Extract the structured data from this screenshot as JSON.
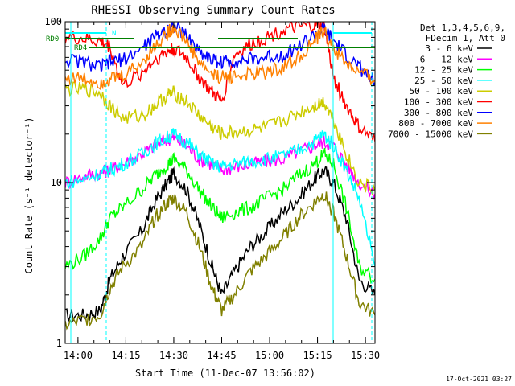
{
  "chart_data": {
    "type": "line",
    "title": "RHESSI Observing Summary Count Rates",
    "xlabel": "Start Time (11-Dec-07 13:56:02)",
    "ylabel": "Count Rate (s⁻¹ detector⁻¹)",
    "yscale": "log",
    "ylim": [
      1,
      100
    ],
    "xlim_minutes": [
      0,
      97
    ],
    "x_start": "13:56:02",
    "x_ticks": [
      {
        "label": "14:00",
        "minute": 4
      },
      {
        "label": "14:15",
        "minute": 19
      },
      {
        "label": "14:30",
        "minute": 34
      },
      {
        "label": "14:45",
        "minute": 49
      },
      {
        "label": "15:00",
        "minute": 64
      },
      {
        "label": "15:15",
        "minute": 79
      },
      {
        "label": "15:30",
        "minute": 94
      }
    ],
    "y_ticks": [
      {
        "label": "1",
        "value": 1
      },
      {
        "label": "10",
        "value": 10
      },
      {
        "label": "100",
        "value": 100
      }
    ],
    "legend_header": [
      "Det 1,3,4,5,6,9,",
      "FDecim 1, Att 0"
    ],
    "legend_position": "top-right",
    "annotations": [
      "RD0",
      "RD4",
      "N"
    ],
    "footer_date": "17-Oct-2021 03:27",
    "series": [
      {
        "name": "3 - 6 keV",
        "color": "#000000",
        "points": [
          [
            0,
            1.5
          ],
          [
            6,
            1.5
          ],
          [
            11,
            1.6
          ],
          [
            14,
            2.5
          ],
          [
            18,
            3.5
          ],
          [
            24,
            5
          ],
          [
            28,
            7.5
          ],
          [
            32,
            10
          ],
          [
            34,
            11.5
          ],
          [
            38,
            9
          ],
          [
            42,
            5.5
          ],
          [
            46,
            3
          ],
          [
            49,
            2
          ],
          [
            53,
            2.8
          ],
          [
            58,
            4
          ],
          [
            63,
            5
          ],
          [
            68,
            6.5
          ],
          [
            73,
            8
          ],
          [
            78,
            10.5
          ],
          [
            81,
            12
          ],
          [
            84,
            10
          ],
          [
            88,
            6
          ],
          [
            92,
            2.5
          ],
          [
            97,
            2
          ]
        ]
      },
      {
        "name": "6 - 12 keV",
        "color": "#ff00ff",
        "points": [
          [
            0,
            10
          ],
          [
            6,
            11
          ],
          [
            11,
            11.5
          ],
          [
            14,
            12
          ],
          [
            18,
            13
          ],
          [
            24,
            15
          ],
          [
            28,
            17
          ],
          [
            32,
            18.5
          ],
          [
            34,
            19
          ],
          [
            38,
            17
          ],
          [
            42,
            14
          ],
          [
            46,
            13
          ],
          [
            49,
            12
          ],
          [
            53,
            12.5
          ],
          [
            58,
            13
          ],
          [
            63,
            13.5
          ],
          [
            68,
            14
          ],
          [
            73,
            15.5
          ],
          [
            78,
            17
          ],
          [
            81,
            18
          ],
          [
            84,
            17
          ],
          [
            88,
            13
          ],
          [
            92,
            10
          ],
          [
            97,
            8.5
          ]
        ]
      },
      {
        "name": "12 - 25 keV",
        "color": "#00ff00",
        "points": [
          [
            0,
            3
          ],
          [
            6,
            3.5
          ],
          [
            11,
            4.5
          ],
          [
            14,
            6
          ],
          [
            18,
            7
          ],
          [
            24,
            9
          ],
          [
            28,
            11
          ],
          [
            32,
            13
          ],
          [
            34,
            14
          ],
          [
            38,
            12
          ],
          [
            42,
            9
          ],
          [
            46,
            7
          ],
          [
            49,
            6
          ],
          [
            53,
            6.5
          ],
          [
            58,
            7
          ],
          [
            63,
            8
          ],
          [
            68,
            9
          ],
          [
            73,
            11
          ],
          [
            78,
            13
          ],
          [
            81,
            15
          ],
          [
            84,
            13
          ],
          [
            88,
            7
          ],
          [
            92,
            3
          ],
          [
            97,
            2.5
          ]
        ]
      },
      {
        "name": "25 - 50 keV",
        "color": "#00ffff",
        "points": [
          [
            0,
            10
          ],
          [
            6,
            10.5
          ],
          [
            11,
            11.5
          ],
          [
            14,
            12
          ],
          [
            18,
            13
          ],
          [
            24,
            15
          ],
          [
            28,
            17.5
          ],
          [
            32,
            19
          ],
          [
            34,
            20
          ],
          [
            38,
            18
          ],
          [
            42,
            15
          ],
          [
            46,
            13
          ],
          [
            49,
            12.5
          ],
          [
            53,
            13
          ],
          [
            58,
            13.5
          ],
          [
            63,
            14
          ],
          [
            68,
            14.5
          ],
          [
            73,
            16
          ],
          [
            78,
            18
          ],
          [
            81,
            20
          ],
          [
            84,
            17
          ],
          [
            88,
            12
          ],
          [
            92,
            8
          ],
          [
            97,
            3
          ]
        ]
      },
      {
        "name": "50 - 100 keV",
        "color": "#cccc00",
        "points": [
          [
            0,
            38
          ],
          [
            6,
            38
          ],
          [
            11,
            36
          ],
          [
            14,
            30
          ],
          [
            18,
            25
          ],
          [
            24,
            26
          ],
          [
            28,
            30
          ],
          [
            32,
            35
          ],
          [
            34,
            36
          ],
          [
            38,
            32
          ],
          [
            42,
            26
          ],
          [
            46,
            22
          ],
          [
            49,
            20
          ],
          [
            53,
            20.5
          ],
          [
            58,
            21
          ],
          [
            63,
            22
          ],
          [
            68,
            24
          ],
          [
            73,
            27
          ],
          [
            78,
            30
          ],
          [
            81,
            32
          ],
          [
            84,
            25
          ],
          [
            88,
            15
          ],
          [
            92,
            10
          ],
          [
            97,
            9
          ]
        ]
      },
      {
        "name": "100 - 300 keV",
        "color": "#ff0000",
        "points": [
          [
            0,
            80
          ],
          [
            6,
            78
          ],
          [
            11,
            75
          ],
          [
            14,
            70
          ],
          [
            18,
            40
          ],
          [
            24,
            48
          ],
          [
            28,
            58
          ],
          [
            32,
            65
          ],
          [
            34,
            68
          ],
          [
            38,
            60
          ],
          [
            42,
            45
          ],
          [
            46,
            36
          ],
          [
            49,
            32
          ],
          [
            53,
            62
          ],
          [
            58,
            72
          ],
          [
            63,
            80
          ],
          [
            68,
            88
          ],
          [
            73,
            92
          ],
          [
            78,
            95
          ],
          [
            81,
            96
          ],
          [
            84,
            45
          ],
          [
            88,
            30
          ],
          [
            92,
            22
          ],
          [
            97,
            18
          ]
        ]
      },
      {
        "name": "300 - 800 keV",
        "color": "#0000ff",
        "points": [
          [
            0,
            58
          ],
          [
            6,
            56
          ],
          [
            11,
            52
          ],
          [
            14,
            56
          ],
          [
            18,
            58
          ],
          [
            24,
            68
          ],
          [
            28,
            80
          ],
          [
            32,
            90
          ],
          [
            34,
            94
          ],
          [
            38,
            82
          ],
          [
            42,
            66
          ],
          [
            46,
            58
          ],
          [
            49,
            56
          ],
          [
            53,
            57
          ],
          [
            58,
            58
          ],
          [
            63,
            60
          ],
          [
            68,
            62
          ],
          [
            73,
            70
          ],
          [
            78,
            82
          ],
          [
            81,
            90
          ],
          [
            84,
            76
          ],
          [
            88,
            62
          ],
          [
            92,
            52
          ],
          [
            97,
            42
          ]
        ]
      },
      {
        "name": "800 - 7000 keV",
        "color": "#ff8000",
        "points": [
          [
            0,
            45
          ],
          [
            6,
            44
          ],
          [
            11,
            42
          ],
          [
            14,
            44
          ],
          [
            18,
            46
          ],
          [
            24,
            56
          ],
          [
            28,
            70
          ],
          [
            32,
            85
          ],
          [
            34,
            92
          ],
          [
            38,
            76
          ],
          [
            42,
            56
          ],
          [
            46,
            47
          ],
          [
            49,
            45
          ],
          [
            53,
            46
          ],
          [
            58,
            47
          ],
          [
            63,
            49
          ],
          [
            68,
            52
          ],
          [
            73,
            60
          ],
          [
            78,
            75
          ],
          [
            81,
            88
          ],
          [
            84,
            68
          ],
          [
            88,
            55
          ],
          [
            92,
            48
          ],
          [
            97,
            43
          ]
        ]
      },
      {
        "name": "7000 - 15000 keV",
        "color": "#808000",
        "points": [
          [
            0,
            1.3
          ],
          [
            6,
            1.4
          ],
          [
            11,
            1.5
          ],
          [
            14,
            2.2
          ],
          [
            18,
            3
          ],
          [
            24,
            4
          ],
          [
            28,
            6
          ],
          [
            32,
            7.5
          ],
          [
            34,
            8
          ],
          [
            38,
            6.5
          ],
          [
            42,
            4
          ],
          [
            46,
            2.2
          ],
          [
            49,
            1.6
          ],
          [
            53,
            2
          ],
          [
            58,
            2.8
          ],
          [
            63,
            3.5
          ],
          [
            68,
            4.5
          ],
          [
            73,
            6
          ],
          [
            78,
            7.5
          ],
          [
            81,
            8.5
          ],
          [
            84,
            6.5
          ],
          [
            88,
            3.5
          ],
          [
            92,
            1.8
          ],
          [
            97,
            1.5
          ]
        ]
      }
    ]
  }
}
